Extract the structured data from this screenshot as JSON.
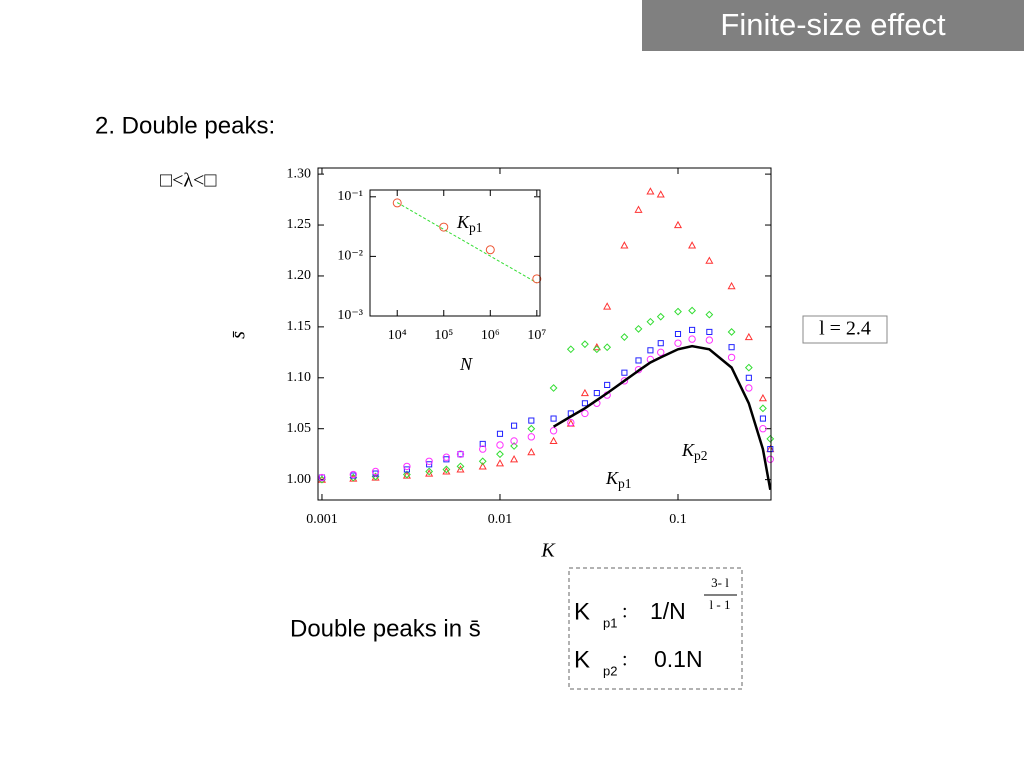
{
  "slide": {
    "title": "Finite-size effect",
    "heading": "2. Double peaks:",
    "condition": "□<λ<□",
    "parameter": "l = 2.4",
    "caption": "Double peaks in s̄",
    "formulas": [
      {
        "symbol": "K",
        "subscript": "p1",
        "separator": ":",
        "expression": "1/N",
        "exponent_numerator": "3- l",
        "exponent_denominator": "l - 1"
      },
      {
        "symbol": "K",
        "subscript": "p2",
        "separator": ":",
        "expression": "0.1N"
      }
    ]
  },
  "chart_data": [
    {
      "type": "scatter",
      "xscale": "log",
      "grid": false,
      "x_label": "K",
      "y_label": "s̄",
      "xlim": [
        0.00095,
        0.333
      ],
      "ylim": [
        0.98,
        1.306
      ],
      "xticks": [
        0.001,
        0.01,
        0.1
      ],
      "yticks": [
        {
          "value": 1.0,
          "label": "1.00"
        },
        {
          "value": 1.05,
          "label": "1.05"
        },
        {
          "value": 1.1,
          "label": "1.10"
        },
        {
          "value": 1.15,
          "label": "1.15"
        },
        {
          "value": 1.2,
          "label": "1.20"
        },
        {
          "value": 1.25,
          "label": "1.25"
        },
        {
          "value": 1.3,
          "label": "1.30"
        }
      ],
      "annotations": [
        {
          "text": "K",
          "subscript": "p1"
        },
        {
          "text": "K",
          "subscript": "p2"
        }
      ],
      "x": [
        0.001,
        0.0015,
        0.002,
        0.003,
        0.004,
        0.005,
        0.006,
        0.008,
        0.01,
        0.012,
        0.015,
        0.02,
        0.025,
        0.03,
        0.035,
        0.04,
        0.05,
        0.06,
        0.07,
        0.08,
        0.1,
        0.12,
        0.15,
        0.2,
        0.25,
        0.3,
        0.33
      ],
      "series": [
        {
          "color": "#ff3333",
          "marker": "triangle",
          "values": [
            1.0,
            1.001,
            1.002,
            1.004,
            1.006,
            1.008,
            1.01,
            1.013,
            1.016,
            1.02,
            1.027,
            1.038,
            1.055,
            1.085,
            1.13,
            1.17,
            1.23,
            1.265,
            1.283,
            1.28,
            1.25,
            1.23,
            1.215,
            1.19,
            1.14,
            1.08,
            1.03
          ]
        },
        {
          "color": "#33dd33",
          "marker": "diamond",
          "values": [
            1.0,
            1.002,
            1.003,
            1.005,
            1.008,
            1.01,
            1.013,
            1.018,
            1.025,
            1.033,
            1.05,
            1.09,
            1.128,
            1.133,
            1.128,
            1.13,
            1.14,
            1.148,
            1.155,
            1.16,
            1.165,
            1.166,
            1.162,
            1.145,
            1.11,
            1.07,
            1.04
          ]
        },
        {
          "color": "#2222ff",
          "marker": "square",
          "values": [
            1.002,
            1.004,
            1.006,
            1.01,
            1.015,
            1.02,
            1.025,
            1.035,
            1.045,
            1.053,
            1.058,
            1.06,
            1.065,
            1.075,
            1.085,
            1.093,
            1.105,
            1.117,
            1.127,
            1.134,
            1.143,
            1.147,
            1.145,
            1.13,
            1.1,
            1.06,
            1.03
          ]
        },
        {
          "color": "#ff33ff",
          "marker": "circle",
          "values": [
            1.002,
            1.005,
            1.008,
            1.013,
            1.018,
            1.022,
            1.025,
            1.03,
            1.034,
            1.038,
            1.042,
            1.048,
            1.056,
            1.065,
            1.075,
            1.083,
            1.097,
            1.108,
            1.118,
            1.125,
            1.134,
            1.138,
            1.137,
            1.12,
            1.09,
            1.05,
            1.02
          ]
        },
        {
          "color": "#000000",
          "marker": "line",
          "values": [
            null,
            null,
            null,
            null,
            null,
            null,
            null,
            null,
            null,
            null,
            null,
            1.052,
            1.062,
            1.07,
            1.078,
            1.085,
            1.097,
            1.107,
            1.115,
            1.12,
            1.128,
            1.131,
            1.128,
            1.11,
            1.075,
            1.03,
            0.99
          ]
        }
      ]
    },
    {
      "type": "scatter",
      "xscale": "log",
      "yscale": "log",
      "grid": false,
      "x_label": "N",
      "xlim": [
        2600,
        11700000
      ],
      "ylim": [
        0.001,
        0.13
      ],
      "xticks": [
        {
          "value": 10000,
          "label": "10⁴"
        },
        {
          "value": 100000,
          "label": "10⁵"
        },
        {
          "value": 1000000,
          "label": "10⁶"
        },
        {
          "value": 10000000,
          "label": "10⁷"
        }
      ],
      "yticks": [
        {
          "value": 0.001,
          "label": "10⁻³"
        },
        {
          "value": 0.01,
          "label": "10⁻²"
        },
        {
          "value": 0.1,
          "label": "10⁻¹"
        }
      ],
      "annotations": [
        {
          "text": "K",
          "subscript": "p1"
        }
      ],
      "x": [
        10000,
        100000,
        1000000,
        10000000
      ],
      "series": [
        {
          "color": "#33dd33",
          "marker": "dashed-line",
          "values": [
            0.08,
            0.0284,
            0.0101,
            0.0036
          ]
        },
        {
          "color": "#ee5533",
          "marker": "circle",
          "values": [
            0.079,
            0.031,
            0.0129,
            0.0042
          ]
        }
      ]
    }
  ]
}
